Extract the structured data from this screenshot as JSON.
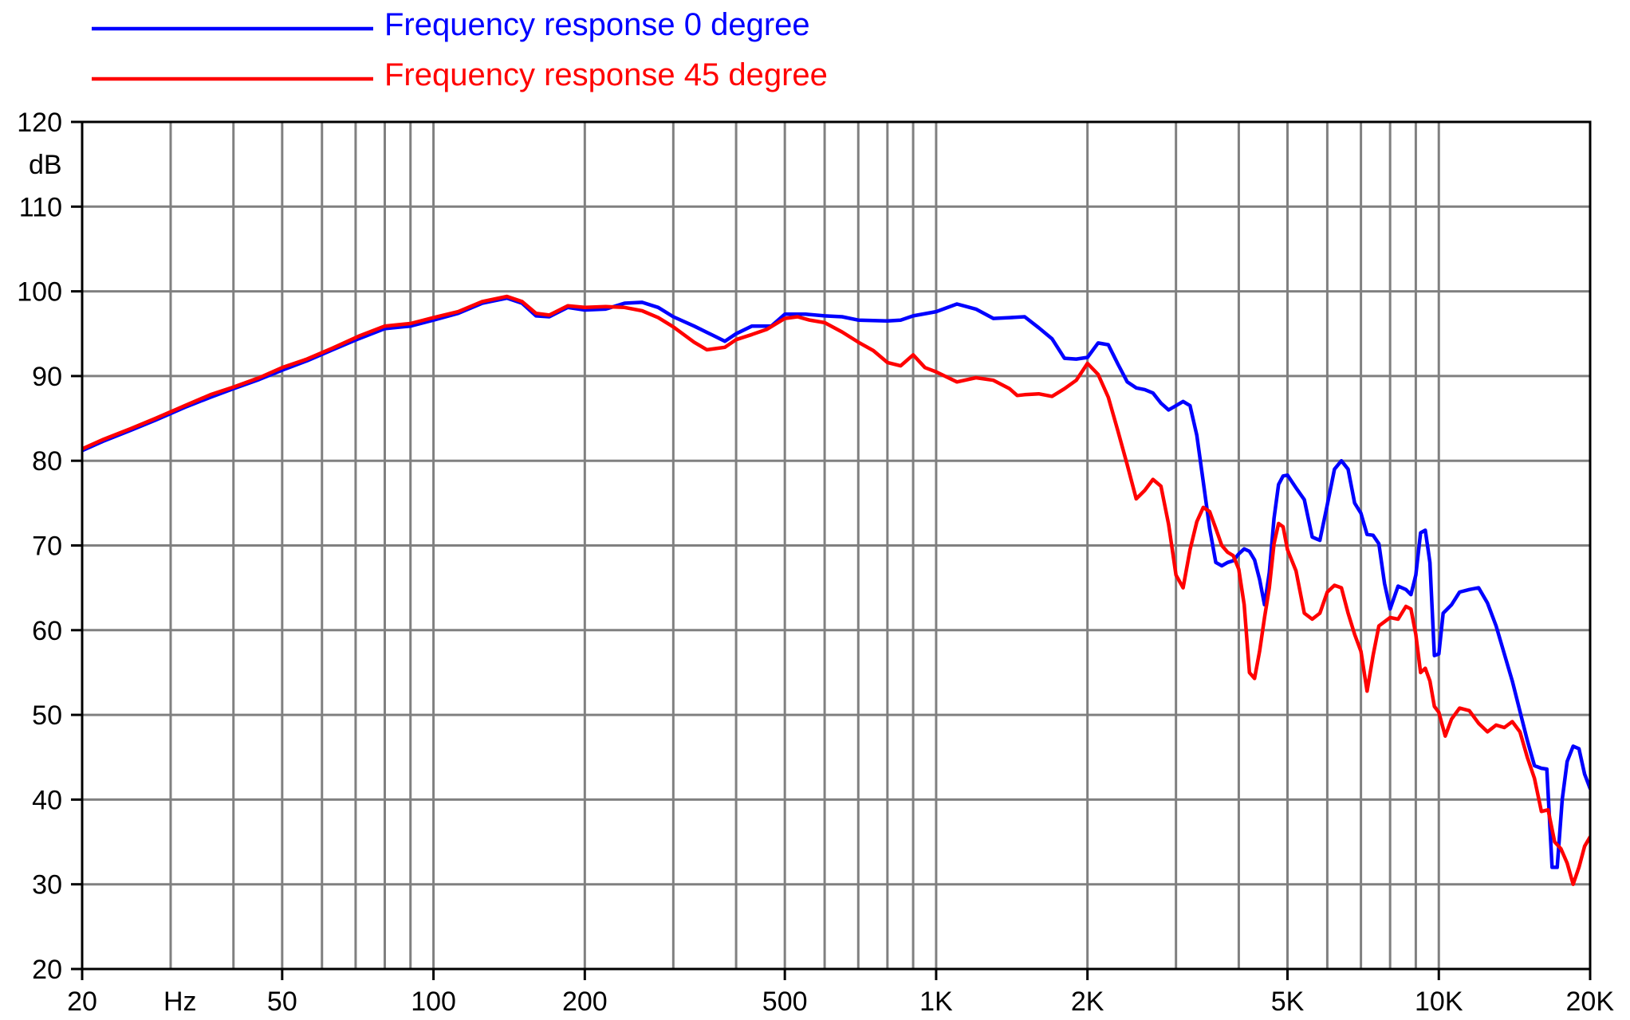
{
  "chart_data": {
    "type": "line",
    "title": "",
    "xlabel": "Hz",
    "ylabel": "dB",
    "x_scale": "log",
    "xlim": [
      20,
      20000
    ],
    "ylim": [
      20,
      120
    ],
    "grid": true,
    "legend_position": "top-left",
    "x_ticks": [
      {
        "value": 20,
        "label": "20"
      },
      {
        "value": 50,
        "label": "50"
      },
      {
        "value": 100,
        "label": "100"
      },
      {
        "value": 200,
        "label": "200"
      },
      {
        "value": 500,
        "label": "500"
      },
      {
        "value": 1000,
        "label": "1K"
      },
      {
        "value": 2000,
        "label": "2K"
      },
      {
        "value": 5000,
        "label": "5K"
      },
      {
        "value": 10000,
        "label": "10K"
      },
      {
        "value": 20000,
        "label": "20K"
      }
    ],
    "y_ticks": [
      20,
      30,
      40,
      50,
      60,
      70,
      80,
      90,
      100,
      110,
      120
    ],
    "series": [
      {
        "name": "Frequency response 0 degree",
        "color": "#0000ff",
        "points": [
          [
            20,
            81.2
          ],
          [
            22,
            82.3
          ],
          [
            25,
            83.6
          ],
          [
            28,
            84.8
          ],
          [
            32,
            86.3
          ],
          [
            36,
            87.5
          ],
          [
            40,
            88.5
          ],
          [
            45,
            89.6
          ],
          [
            50,
            90.7
          ],
          [
            56,
            91.8
          ],
          [
            63,
            93.1
          ],
          [
            71,
            94.4
          ],
          [
            80,
            95.6
          ],
          [
            90,
            95.9
          ],
          [
            100,
            96.6
          ],
          [
            112,
            97.4
          ],
          [
            125,
            98.6
          ],
          [
            140,
            99.2
          ],
          [
            150,
            98.6
          ],
          [
            160,
            97.1
          ],
          [
            170,
            97.0
          ],
          [
            185,
            98.1
          ],
          [
            200,
            97.8
          ],
          [
            220,
            97.9
          ],
          [
            240,
            98.6
          ],
          [
            260,
            98.7
          ],
          [
            280,
            98.1
          ],
          [
            300,
            97.0
          ],
          [
            330,
            95.9
          ],
          [
            360,
            94.8
          ],
          [
            380,
            94.1
          ],
          [
            400,
            95.0
          ],
          [
            430,
            95.9
          ],
          [
            470,
            95.9
          ],
          [
            500,
            97.3
          ],
          [
            550,
            97.3
          ],
          [
            600,
            97.1
          ],
          [
            650,
            97.0
          ],
          [
            700,
            96.6
          ],
          [
            800,
            96.5
          ],
          [
            850,
            96.6
          ],
          [
            900,
            97.1
          ],
          [
            1000,
            97.6
          ],
          [
            1100,
            98.5
          ],
          [
            1200,
            97.9
          ],
          [
            1300,
            96.8
          ],
          [
            1400,
            96.9
          ],
          [
            1500,
            97.0
          ],
          [
            1600,
            95.7
          ],
          [
            1700,
            94.4
          ],
          [
            1800,
            92.1
          ],
          [
            1900,
            92.0
          ],
          [
            2000,
            92.2
          ],
          [
            2100,
            93.9
          ],
          [
            2200,
            93.7
          ],
          [
            2300,
            91.4
          ],
          [
            2400,
            89.3
          ],
          [
            2500,
            88.6
          ],
          [
            2600,
            88.4
          ],
          [
            2700,
            88.0
          ],
          [
            2800,
            86.8
          ],
          [
            2900,
            86.0
          ],
          [
            3000,
            86.5
          ],
          [
            3100,
            87.0
          ],
          [
            3200,
            86.5
          ],
          [
            3300,
            83.0
          ],
          [
            3400,
            77.5
          ],
          [
            3500,
            72.0
          ],
          [
            3600,
            68.0
          ],
          [
            3700,
            67.6
          ],
          [
            3800,
            68.0
          ],
          [
            3900,
            68.2
          ],
          [
            4000,
            69.0
          ],
          [
            4100,
            69.6
          ],
          [
            4200,
            69.3
          ],
          [
            4300,
            68.3
          ],
          [
            4400,
            66.0
          ],
          [
            4500,
            63.0
          ],
          [
            4600,
            66.8
          ],
          [
            4700,
            73.2
          ],
          [
            4800,
            77.2
          ],
          [
            4900,
            78.2
          ],
          [
            5000,
            78.3
          ],
          [
            5200,
            76.8
          ],
          [
            5400,
            75.4
          ],
          [
            5600,
            71.0
          ],
          [
            5800,
            70.6
          ],
          [
            6000,
            74.8
          ],
          [
            6200,
            79.0
          ],
          [
            6400,
            80.0
          ],
          [
            6600,
            79.0
          ],
          [
            6800,
            75.0
          ],
          [
            7000,
            73.8
          ],
          [
            7200,
            71.3
          ],
          [
            7400,
            71.2
          ],
          [
            7600,
            70.2
          ],
          [
            7800,
            65.5
          ],
          [
            8000,
            62.5
          ],
          [
            8300,
            65.2
          ],
          [
            8600,
            64.8
          ],
          [
            8800,
            64.2
          ],
          [
            9000,
            66.5
          ],
          [
            9200,
            71.5
          ],
          [
            9400,
            71.8
          ],
          [
            9600,
            68.0
          ],
          [
            9800,
            57.0
          ],
          [
            10000,
            57.2
          ],
          [
            10200,
            62.0
          ],
          [
            10600,
            63.0
          ],
          [
            11000,
            64.5
          ],
          [
            11500,
            64.8
          ],
          [
            12000,
            65.0
          ],
          [
            12500,
            63.2
          ],
          [
            13000,
            60.5
          ],
          [
            14000,
            54.0
          ],
          [
            15000,
            47.0
          ],
          [
            15500,
            44.0
          ],
          [
            16000,
            43.7
          ],
          [
            16400,
            43.6
          ],
          [
            16800,
            32.0
          ],
          [
            17200,
            32.0
          ],
          [
            17600,
            40.0
          ],
          [
            18000,
            44.5
          ],
          [
            18500,
            46.3
          ],
          [
            19000,
            46.0
          ],
          [
            19500,
            43.0
          ],
          [
            20000,
            41.3
          ],
          [
            20500,
            42.0
          ],
          [
            21000,
            42.8
          ],
          [
            21500,
            43.2
          ],
          [
            22000,
            43.2
          ]
        ]
      },
      {
        "name": "Frequency response 45 degree",
        "color": "#ff0000",
        "points": [
          [
            20,
            81.4
          ],
          [
            22,
            82.5
          ],
          [
            25,
            83.8
          ],
          [
            28,
            85.0
          ],
          [
            32,
            86.5
          ],
          [
            36,
            87.8
          ],
          [
            40,
            88.7
          ],
          [
            45,
            89.8
          ],
          [
            50,
            91.0
          ],
          [
            56,
            92.0
          ],
          [
            63,
            93.3
          ],
          [
            71,
            94.7
          ],
          [
            80,
            95.9
          ],
          [
            90,
            96.2
          ],
          [
            100,
            96.9
          ],
          [
            112,
            97.6
          ],
          [
            125,
            98.8
          ],
          [
            140,
            99.4
          ],
          [
            150,
            98.8
          ],
          [
            160,
            97.4
          ],
          [
            170,
            97.2
          ],
          [
            185,
            98.3
          ],
          [
            200,
            98.1
          ],
          [
            220,
            98.2
          ],
          [
            240,
            98.1
          ],
          [
            260,
            97.7
          ],
          [
            280,
            96.9
          ],
          [
            300,
            95.8
          ],
          [
            330,
            94.0
          ],
          [
            350,
            93.1
          ],
          [
            380,
            93.4
          ],
          [
            400,
            94.3
          ],
          [
            430,
            94.9
          ],
          [
            460,
            95.5
          ],
          [
            500,
            96.8
          ],
          [
            530,
            97.0
          ],
          [
            560,
            96.6
          ],
          [
            600,
            96.3
          ],
          [
            650,
            95.2
          ],
          [
            700,
            94.0
          ],
          [
            750,
            93.0
          ],
          [
            800,
            91.6
          ],
          [
            850,
            91.2
          ],
          [
            900,
            92.5
          ],
          [
            950,
            91.0
          ],
          [
            1000,
            90.5
          ],
          [
            1100,
            89.3
          ],
          [
            1200,
            89.8
          ],
          [
            1300,
            89.5
          ],
          [
            1400,
            88.5
          ],
          [
            1450,
            87.7
          ],
          [
            1500,
            87.8
          ],
          [
            1600,
            87.9
          ],
          [
            1700,
            87.6
          ],
          [
            1800,
            88.5
          ],
          [
            1900,
            89.5
          ],
          [
            2000,
            91.5
          ],
          [
            2100,
            90.2
          ],
          [
            2200,
            87.5
          ],
          [
            2300,
            83.5
          ],
          [
            2400,
            79.5
          ],
          [
            2500,
            75.5
          ],
          [
            2600,
            76.5
          ],
          [
            2700,
            77.8
          ],
          [
            2800,
            77.0
          ],
          [
            2900,
            72.5
          ],
          [
            3000,
            66.5
          ],
          [
            3100,
            65.0
          ],
          [
            3200,
            69.5
          ],
          [
            3300,
            72.8
          ],
          [
            3400,
            74.5
          ],
          [
            3500,
            74.0
          ],
          [
            3600,
            72.0
          ],
          [
            3700,
            70.0
          ],
          [
            3800,
            69.2
          ],
          [
            3900,
            68.8
          ],
          [
            4000,
            67.2
          ],
          [
            4100,
            63.0
          ],
          [
            4200,
            55.0
          ],
          [
            4300,
            54.3
          ],
          [
            4400,
            57.5
          ],
          [
            4500,
            61.5
          ],
          [
            4600,
            65.0
          ],
          [
            4700,
            70.2
          ],
          [
            4800,
            72.6
          ],
          [
            4900,
            72.2
          ],
          [
            5000,
            69.5
          ],
          [
            5200,
            67.0
          ],
          [
            5400,
            62.0
          ],
          [
            5600,
            61.3
          ],
          [
            5800,
            62.0
          ],
          [
            6000,
            64.5
          ],
          [
            6200,
            65.3
          ],
          [
            6400,
            65.0
          ],
          [
            6600,
            62.0
          ],
          [
            6800,
            59.5
          ],
          [
            7000,
            57.5
          ],
          [
            7200,
            52.8
          ],
          [
            7400,
            57.0
          ],
          [
            7600,
            60.5
          ],
          [
            7800,
            61.0
          ],
          [
            8000,
            61.5
          ],
          [
            8300,
            61.3
          ],
          [
            8600,
            62.8
          ],
          [
            8800,
            62.5
          ],
          [
            9000,
            59.5
          ],
          [
            9200,
            55.0
          ],
          [
            9400,
            55.5
          ],
          [
            9600,
            54.0
          ],
          [
            9800,
            51.0
          ],
          [
            10000,
            50.3
          ],
          [
            10300,
            47.5
          ],
          [
            10600,
            49.5
          ],
          [
            11000,
            50.8
          ],
          [
            11500,
            50.5
          ],
          [
            12000,
            49.0
          ],
          [
            12500,
            48.0
          ],
          [
            13000,
            48.8
          ],
          [
            13500,
            48.5
          ],
          [
            14000,
            49.2
          ],
          [
            14500,
            48.0
          ],
          [
            15000,
            45.0
          ],
          [
            15500,
            42.5
          ],
          [
            16000,
            38.6
          ],
          [
            16500,
            38.8
          ],
          [
            17000,
            35.0
          ],
          [
            17500,
            34.2
          ],
          [
            18000,
            32.5
          ],
          [
            18500,
            30.0
          ],
          [
            19000,
            32.0
          ],
          [
            19500,
            34.5
          ],
          [
            20000,
            35.6
          ],
          [
            20500,
            35.2
          ],
          [
            21000,
            35.4
          ],
          [
            21500,
            35.3
          ],
          [
            22000,
            34.3
          ]
        ]
      }
    ]
  }
}
